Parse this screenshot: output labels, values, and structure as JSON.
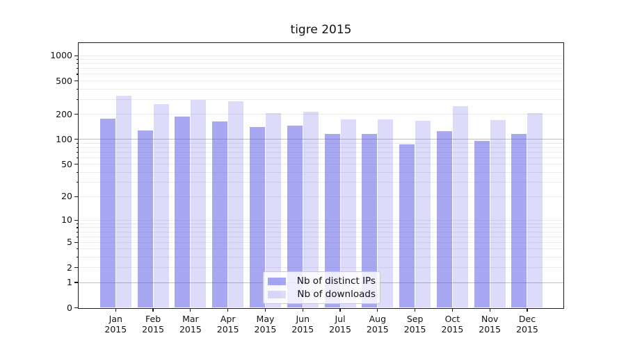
{
  "chart_data": {
    "type": "bar",
    "title": "tigre 2015",
    "categories": [
      "Jan",
      "Feb",
      "Mar",
      "Apr",
      "May",
      "Jun",
      "Jul",
      "Aug",
      "Sep",
      "Oct",
      "Nov",
      "Dec"
    ],
    "category_year": "2015",
    "series": [
      {
        "name": "Nb of distinct IPs",
        "color": "rgba(80,80,230,0.5)",
        "values": [
          176,
          127,
          187,
          165,
          140,
          145,
          117,
          117,
          87,
          126,
          96,
          117
        ]
      },
      {
        "name": "Nb of downloads",
        "color": "rgba(80,80,230,0.2)",
        "values": [
          332,
          264,
          298,
          287,
          206,
          216,
          173,
          172,
          166,
          251,
          170,
          206
        ]
      }
    ],
    "y_axis": {
      "scale": "log1p",
      "tick_values": [
        0,
        1,
        2,
        5,
        10,
        20,
        50,
        100,
        200,
        500,
        1000
      ],
      "tick_labels": [
        "0",
        "1",
        "2",
        "5",
        "10",
        "20",
        "50",
        "100",
        "200",
        "500",
        "1000"
      ],
      "top_value": 1413
    },
    "grid": {
      "minor_values": [
        2,
        3,
        4,
        5,
        6,
        7,
        8,
        9,
        10,
        20,
        30,
        40,
        50,
        60,
        70,
        80,
        90,
        200,
        300,
        400,
        500,
        600,
        700,
        800,
        900,
        1000
      ],
      "major_values": [
        1,
        100
      ],
      "minor_color": "#eaeaea",
      "major_color": "#bfbfbf"
    },
    "legend": {
      "position": "lower-center"
    }
  }
}
